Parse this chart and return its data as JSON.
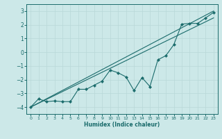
{
  "xlabel": "Humidex (Indice chaleur)",
  "bg_color": "#cce8e8",
  "grid_color": "#b8d8d8",
  "line_color": "#1a6b6b",
  "xlim": [
    -0.5,
    23.5
  ],
  "ylim": [
    -4.5,
    3.5
  ],
  "yticks": [
    -4,
    -3,
    -2,
    -1,
    0,
    1,
    2,
    3
  ],
  "xticks": [
    0,
    1,
    2,
    3,
    4,
    5,
    6,
    7,
    8,
    9,
    10,
    11,
    12,
    13,
    14,
    15,
    16,
    17,
    18,
    19,
    20,
    21,
    22,
    23
  ],
  "line1_x": [
    0,
    23
  ],
  "line1_y": [
    -4.0,
    3.0
  ],
  "line2_x": [
    0,
    23
  ],
  "line2_y": [
    -4.0,
    2.5
  ],
  "data_x": [
    0,
    1,
    2,
    3,
    4,
    5,
    6,
    7,
    8,
    9,
    10,
    11,
    12,
    13,
    14,
    15,
    16,
    17,
    18,
    19,
    20,
    21,
    22,
    23
  ],
  "data_y": [
    -4.0,
    -3.4,
    -3.6,
    -3.55,
    -3.6,
    -3.6,
    -2.7,
    -2.7,
    -2.4,
    -2.1,
    -1.3,
    -1.5,
    -1.8,
    -2.8,
    -1.85,
    -2.5,
    -0.55,
    -0.25,
    0.55,
    2.05,
    2.1,
    2.1,
    2.5,
    2.9
  ]
}
